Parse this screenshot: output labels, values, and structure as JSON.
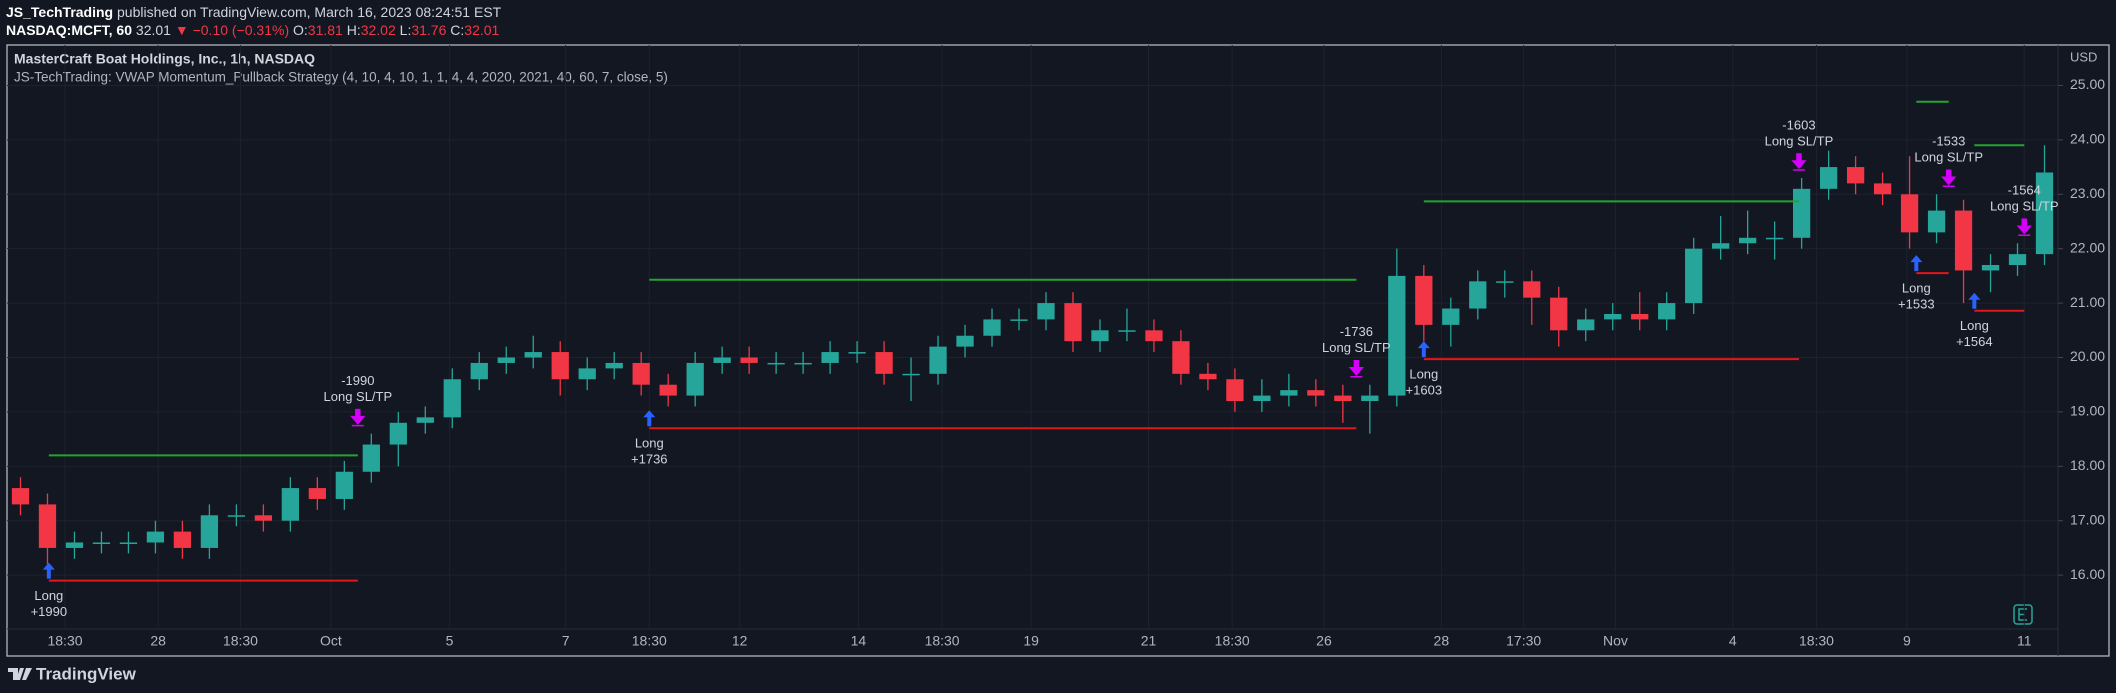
{
  "header": {
    "author": "JS_TechTrading",
    "published": " published on TradingView.com, March 16, 2023 08:24:51 EST",
    "symbol": "NASDAQ:MCFT, 60",
    "last": "32.01",
    "change": "▼ −0.10 (−0.31%)",
    "o_label": "O:",
    "o": "31.81",
    "h_label": "H:",
    "h": "32.02",
    "l_label": "L:",
    "l": "31.76",
    "c_label": "C:",
    "c": "32.01"
  },
  "footer": {
    "brand": "TradingView"
  },
  "chart_data": {
    "type": "candlestick",
    "title": "MasterCraft Boat Holdings, Inc., 1h, NASDAQ",
    "subtitle": "JS-TechTrading: VWAP Momentum_Pullback Strategy (4, 10, 4, 10, 1, 1, 4, 4, 2020, 2021, 40, 60, 7, close, 5)",
    "y_unit": "USD",
    "up_color": "#26a69a",
    "down_color": "#f23645",
    "grid": true,
    "open": [
      17.6,
      17.3,
      16.5,
      16.6,
      16.6,
      16.6,
      16.8,
      16.5,
      17.1,
      17.1,
      17.0,
      17.6,
      17.4,
      17.9,
      18.4,
      18.8,
      18.9,
      19.6,
      19.9,
      20.0,
      20.1,
      19.6,
      19.8,
      19.9,
      19.5,
      19.3,
      19.9,
      20.0,
      19.9,
      19.9,
      19.9,
      20.1,
      20.1,
      19.7,
      19.7,
      20.2,
      20.4,
      20.7,
      20.7,
      21.0,
      20.3,
      20.5,
      20.5,
      20.3,
      19.7,
      19.6,
      19.2,
      19.3,
      19.4,
      19.3,
      19.2,
      19.3,
      21.5,
      20.6,
      20.9,
      21.4,
      21.4,
      21.1,
      20.5,
      20.7,
      20.8,
      20.7,
      21.0,
      22.0,
      22.1,
      22.2,
      22.2,
      23.1,
      23.5,
      23.2,
      23.0,
      22.3,
      22.7,
      21.6,
      21.7,
      21.9
    ],
    "high": [
      17.8,
      17.5,
      16.8,
      16.8,
      16.8,
      17.0,
      17.0,
      17.3,
      17.3,
      17.3,
      17.8,
      17.8,
      18.1,
      18.6,
      19.0,
      19.1,
      19.8,
      20.1,
      20.2,
      20.4,
      20.3,
      20.0,
      20.1,
      20.1,
      19.7,
      20.1,
      20.2,
      20.2,
      20.1,
      20.1,
      20.3,
      20.3,
      20.3,
      20.0,
      20.4,
      20.6,
      20.9,
      20.9,
      21.2,
      21.2,
      20.7,
      20.9,
      20.7,
      20.5,
      19.9,
      19.8,
      19.6,
      19.7,
      19.6,
      19.5,
      19.5,
      22.0,
      21.7,
      21.1,
      21.6,
      21.6,
      21.6,
      21.3,
      20.9,
      21.0,
      21.2,
      21.2,
      22.2,
      22.6,
      22.7,
      22.5,
      23.3,
      23.8,
      23.7,
      23.4,
      23.7,
      23.0,
      22.9,
      21.9,
      22.1,
      23.9
    ],
    "low": [
      17.1,
      16.2,
      16.3,
      16.4,
      16.4,
      16.4,
      16.3,
      16.3,
      16.9,
      16.8,
      16.8,
      17.2,
      17.2,
      17.7,
      18.0,
      18.6,
      18.7,
      19.4,
      19.7,
      19.8,
      19.3,
      19.4,
      19.6,
      19.3,
      19.1,
      19.1,
      19.7,
      19.7,
      19.7,
      19.7,
      19.7,
      19.9,
      19.5,
      19.2,
      19.5,
      20.0,
      20.2,
      20.5,
      20.5,
      20.1,
      20.1,
      20.3,
      20.1,
      19.5,
      19.4,
      19.0,
      19.0,
      19.1,
      19.1,
      18.8,
      18.6,
      19.1,
      20.3,
      20.2,
      20.7,
      21.1,
      20.6,
      20.2,
      20.3,
      20.5,
      20.5,
      20.5,
      20.8,
      21.8,
      21.9,
      21.8,
      22.0,
      22.9,
      23.0,
      22.8,
      22.0,
      22.1,
      21.0,
      21.2,
      21.5,
      21.7
    ],
    "close": [
      17.3,
      16.5,
      16.6,
      16.6,
      16.6,
      16.8,
      16.5,
      17.1,
      17.1,
      17.0,
      17.6,
      17.4,
      17.9,
      18.4,
      18.8,
      18.9,
      19.6,
      19.9,
      20.0,
      20.1,
      19.6,
      19.8,
      19.9,
      19.5,
      19.3,
      19.9,
      20.0,
      19.9,
      19.9,
      19.9,
      20.1,
      20.1,
      19.7,
      19.7,
      20.2,
      20.4,
      20.7,
      20.7,
      21.0,
      20.3,
      20.5,
      20.5,
      20.3,
      19.7,
      19.6,
      19.2,
      19.3,
      19.4,
      19.3,
      19.2,
      19.3,
      21.5,
      20.6,
      20.9,
      21.4,
      21.4,
      21.1,
      20.5,
      20.7,
      20.8,
      20.7,
      21.0,
      22.0,
      22.1,
      22.2,
      22.2,
      23.1,
      23.5,
      23.2,
      23.0,
      22.3,
      22.7,
      21.6,
      21.7,
      21.9,
      23.4
    ],
    "xlim": [
      -0.5,
      75.5
    ],
    "xticks": [
      {
        "value": 1.65,
        "label": "18:30"
      },
      {
        "value": 5.1,
        "label": "28"
      },
      {
        "value": 8.15,
        "label": "18:30"
      },
      {
        "value": 11.5,
        "label": "Oct"
      },
      {
        "value": 15.9,
        "label": "5"
      },
      {
        "value": 20.2,
        "label": "7"
      },
      {
        "value": 23.3,
        "label": "18:30"
      },
      {
        "value": 26.65,
        "label": "12"
      },
      {
        "value": 31.05,
        "label": "14"
      },
      {
        "value": 34.15,
        "label": "18:30"
      },
      {
        "value": 37.45,
        "label": "19"
      },
      {
        "value": 41.8,
        "label": "21"
      },
      {
        "value": 44.9,
        "label": "18:30"
      },
      {
        "value": 48.3,
        "label": "26"
      },
      {
        "value": 52.65,
        "label": "28"
      },
      {
        "value": 55.7,
        "label": "17:30"
      },
      {
        "value": 59.1,
        "label": "Nov"
      },
      {
        "value": 63.45,
        "label": "4"
      },
      {
        "value": 66.55,
        "label": "18:30"
      },
      {
        "value": 69.9,
        "label": "9"
      },
      {
        "value": 74.25,
        "label": "11"
      }
    ],
    "ylim": [
      15.01,
      25.67
    ],
    "yticks": [
      {
        "value": 16,
        "label": "16.00"
      },
      {
        "value": 17,
        "label": "17.00"
      },
      {
        "value": 18,
        "label": "18.00"
      },
      {
        "value": 19,
        "label": "19.00"
      },
      {
        "value": 20,
        "label": "20.00"
      },
      {
        "value": 21,
        "label": "21.00"
      },
      {
        "value": 22,
        "label": "22.00"
      },
      {
        "value": 23,
        "label": "23.00"
      },
      {
        "value": 24,
        "label": "24.00"
      },
      {
        "value": 25,
        "label": "25.00"
      }
    ],
    "target_color": "#22a52c",
    "stop_color": "#e3171b",
    "entry_color": "#2962ff",
    "exit_color": "#d500f9",
    "trades": [
      {
        "entry_bar": 1.05,
        "exit_bar": 12.5,
        "entry_label": "Long",
        "entry_qty": "+1990",
        "exit_qty": "-1990",
        "exit_label": "Long SL/TP",
        "target": 18.2,
        "stop": 15.9
      },
      {
        "entry_bar": 23.3,
        "exit_bar": 49.5,
        "entry_label": "Long",
        "entry_qty": "+1736",
        "exit_qty": "-1736",
        "exit_label": "Long SL/TP",
        "target": 21.43,
        "stop": 18.7
      },
      {
        "entry_bar": 52.0,
        "exit_bar": 65.9,
        "entry_label": "Long",
        "entry_qty": "+1603",
        "exit_qty": "-1603",
        "exit_label": "Long SL/TP",
        "target": 22.87,
        "stop": 19.97
      },
      {
        "entry_bar": 70.25,
        "exit_bar": 71.45,
        "entry_label": "Long",
        "entry_qty": "+1533",
        "exit_qty": "-1533",
        "exit_label": "Long SL/TP",
        "target": 24.7,
        "stop": 21.55
      },
      {
        "entry_bar": 72.4,
        "exit_bar": 74.25,
        "entry_label": "Long",
        "entry_qty": "+1564",
        "exit_qty": "-1564",
        "exit_label": "Long SL/TP",
        "target": 23.9,
        "stop": 20.86
      }
    ]
  }
}
